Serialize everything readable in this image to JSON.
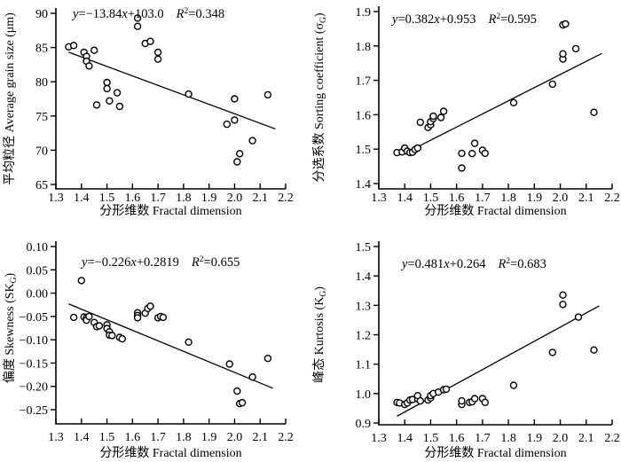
{
  "figure": {
    "background": "#ffffff",
    "axis_color": "#000000",
    "marker_stroke": "#000000",
    "marker_fill": "#ffffff",
    "line_color": "#000000",
    "xlabel": "分形维数 Fractal dimension",
    "x_ticks": [
      "1.3",
      "1.4",
      "1.5",
      "1.6",
      "1.7",
      "1.8",
      "1.9",
      "2.0",
      "2.1",
      "2.2"
    ],
    "xlim": [
      1.3,
      2.2
    ],
    "grid": false,
    "legend": "none"
  },
  "chart_data": [
    {
      "id": "average-grain-size",
      "type": "scatter",
      "position": "top-left",
      "ylabel_zh": "平均粒径",
      "ylabel_en": "Average grain size (μm)",
      "ylabel_sub": "",
      "ylabel_close": "",
      "equation": "y=−13.84x+103.0",
      "r2": "R²=0.348",
      "ylim": [
        65,
        90
      ],
      "y_ticks": [
        "90",
        "85",
        "80",
        "75",
        "70",
        "65"
      ],
      "fit": {
        "slope": -13.84,
        "intercept": 103.0,
        "x1": 1.35,
        "x2": 2.16
      },
      "points": [
        [
          1.35,
          85.1
        ],
        [
          1.37,
          85.3
        ],
        [
          1.41,
          84.3
        ],
        [
          1.42,
          83.7
        ],
        [
          1.42,
          83.0
        ],
        [
          1.43,
          82.3
        ],
        [
          1.45,
          84.6
        ],
        [
          1.46,
          76.6
        ],
        [
          1.5,
          79.9
        ],
        [
          1.5,
          79.0
        ],
        [
          1.51,
          77.2
        ],
        [
          1.54,
          78.4
        ],
        [
          1.55,
          76.4
        ],
        [
          1.62,
          89.3
        ],
        [
          1.62,
          88.1
        ],
        [
          1.65,
          85.6
        ],
        [
          1.67,
          85.9
        ],
        [
          1.7,
          84.3
        ],
        [
          1.7,
          83.3
        ],
        [
          1.82,
          78.2
        ],
        [
          1.97,
          73.8
        ],
        [
          2.0,
          77.5
        ],
        [
          2.0,
          74.4
        ],
        [
          2.01,
          68.3
        ],
        [
          2.02,
          69.5
        ],
        [
          2.07,
          71.4
        ],
        [
          2.13,
          78.1
        ]
      ]
    },
    {
      "id": "sorting-coefficient",
      "type": "scatter",
      "position": "top-right",
      "ylabel_zh": "分选系数",
      "ylabel_en": "Sorting coefficient (σ",
      "ylabel_sub": "G",
      "ylabel_close": ")",
      "equation": "y=0.382x+0.953",
      "r2": "R²=0.595",
      "ylim": [
        1.4,
        1.9
      ],
      "y_ticks": [
        "1.9",
        "1.8",
        "1.7",
        "1.6",
        "1.5",
        "1.4"
      ],
      "fit": {
        "slope": 0.382,
        "intercept": 0.953,
        "x1": 1.46,
        "x2": 2.16
      },
      "points": [
        [
          1.37,
          1.49
        ],
        [
          1.39,
          1.492
        ],
        [
          1.4,
          1.503
        ],
        [
          1.41,
          1.494
        ],
        [
          1.42,
          1.49
        ],
        [
          1.43,
          1.491
        ],
        [
          1.44,
          1.499
        ],
        [
          1.45,
          1.503
        ],
        [
          1.46,
          1.578
        ],
        [
          1.49,
          1.563
        ],
        [
          1.5,
          1.571
        ],
        [
          1.5,
          1.58
        ],
        [
          1.51,
          1.589
        ],
        [
          1.51,
          1.596
        ],
        [
          1.54,
          1.592
        ],
        [
          1.55,
          1.61
        ],
        [
          1.62,
          1.445
        ],
        [
          1.62,
          1.488
        ],
        [
          1.66,
          1.487
        ],
        [
          1.67,
          1.517
        ],
        [
          1.7,
          1.497
        ],
        [
          1.71,
          1.488
        ],
        [
          1.82,
          1.635
        ],
        [
          1.97,
          1.689
        ],
        [
          2.01,
          1.762
        ],
        [
          2.01,
          1.777
        ],
        [
          2.01,
          1.861
        ],
        [
          2.02,
          1.864
        ],
        [
          2.06,
          1.792
        ],
        [
          2.13,
          1.607
        ]
      ]
    },
    {
      "id": "skewness",
      "type": "scatter",
      "position": "bottom-left",
      "ylabel_zh": "偏度",
      "ylabel_en": "Skewness (SK",
      "ylabel_sub": "G",
      "ylabel_close": ")",
      "equation": "y=−0.226x+0.2819",
      "r2": "R²=0.655",
      "ylim": [
        -0.25,
        0.1
      ],
      "y_ticks": [
        "0.10",
        "0.05",
        "0.00",
        "−0.05",
        "−0.10",
        "−0.15",
        "−0.20",
        "−0.25"
      ],
      "fit": {
        "slope": -0.226,
        "intercept": 0.2819,
        "x1": 1.35,
        "x2": 2.15
      },
      "points": [
        [
          1.37,
          -0.052
        ],
        [
          1.4,
          0.027
        ],
        [
          1.41,
          -0.051
        ],
        [
          1.42,
          -0.053
        ],
        [
          1.42,
          -0.058
        ],
        [
          1.43,
          -0.05
        ],
        [
          1.45,
          -0.063
        ],
        [
          1.46,
          -0.072
        ],
        [
          1.47,
          -0.07
        ],
        [
          1.5,
          -0.068
        ],
        [
          1.5,
          -0.076
        ],
        [
          1.51,
          -0.083
        ],
        [
          1.51,
          -0.09
        ],
        [
          1.52,
          -0.091
        ],
        [
          1.55,
          -0.095
        ],
        [
          1.56,
          -0.098
        ],
        [
          1.62,
          -0.042
        ],
        [
          1.62,
          -0.048
        ],
        [
          1.62,
          -0.053
        ],
        [
          1.65,
          -0.043
        ],
        [
          1.66,
          -0.033
        ],
        [
          1.67,
          -0.028
        ],
        [
          1.7,
          -0.053
        ],
        [
          1.71,
          -0.05
        ],
        [
          1.72,
          -0.052
        ],
        [
          1.82,
          -0.105
        ],
        [
          1.98,
          -0.152
        ],
        [
          2.01,
          -0.21
        ],
        [
          2.02,
          -0.237
        ],
        [
          2.03,
          -0.235
        ],
        [
          2.07,
          -0.18
        ],
        [
          2.13,
          -0.14
        ]
      ]
    },
    {
      "id": "kurtosis",
      "type": "scatter",
      "position": "bottom-right",
      "ylabel_zh": "峰态",
      "ylabel_en": "Kurtosis (K",
      "ylabel_sub": "G",
      "ylabel_close": ")",
      "equation": "y=0.481x+0.264",
      "r2": "R²=0.683",
      "ylim": [
        0.9,
        1.5
      ],
      "y_ticks": [
        "1.5",
        "1.4",
        "1.3",
        "1.2",
        "1.1",
        "1.0",
        "0.9"
      ],
      "fit": {
        "slope": 0.481,
        "intercept": 0.264,
        "x1": 1.37,
        "x2": 2.15
      },
      "points": [
        [
          1.37,
          0.97
        ],
        [
          1.38,
          0.968
        ],
        [
          1.4,
          0.963
        ],
        [
          1.41,
          0.968
        ],
        [
          1.42,
          0.978
        ],
        [
          1.43,
          0.98
        ],
        [
          1.45,
          0.982
        ],
        [
          1.45,
          0.993
        ],
        [
          1.46,
          0.975
        ],
        [
          1.49,
          0.978
        ],
        [
          1.5,
          0.985
        ],
        [
          1.5,
          0.993
        ],
        [
          1.51,
          1.0
        ],
        [
          1.53,
          1.005
        ],
        [
          1.55,
          1.013
        ],
        [
          1.56,
          1.015
        ],
        [
          1.62,
          0.963
        ],
        [
          1.62,
          0.975
        ],
        [
          1.65,
          0.97
        ],
        [
          1.66,
          0.972
        ],
        [
          1.67,
          0.983
        ],
        [
          1.7,
          0.983
        ],
        [
          1.71,
          0.97
        ],
        [
          1.82,
          1.028
        ],
        [
          1.97,
          1.14
        ],
        [
          2.01,
          1.303
        ],
        [
          2.01,
          1.335
        ],
        [
          2.07,
          1.26
        ],
        [
          2.13,
          1.148
        ]
      ]
    }
  ]
}
